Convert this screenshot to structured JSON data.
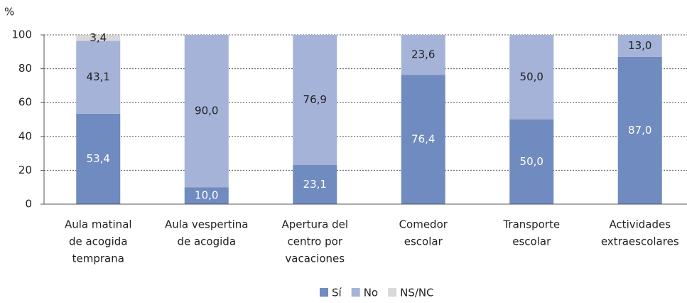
{
  "chart_data": {
    "type": "stacked_bar",
    "y_label": "%",
    "categories": [
      [
        "Aula matinal",
        "de acogida",
        "temprana"
      ],
      [
        "Aula vespertina",
        "de acogida"
      ],
      [
        "Apertura del",
        "centro por",
        "vacaciones"
      ],
      [
        "Comedor",
        "escolar"
      ],
      [
        "Transporte",
        "escolar"
      ],
      [
        "Actividades",
        "extraescolares"
      ]
    ],
    "series": [
      {
        "name": "Sí",
        "color": "#6f8bbf",
        "label_color": "#ffffff",
        "values": [
          53.4,
          10.0,
          23.1,
          76.4,
          50.0,
          87.0
        ],
        "value_labels": [
          "53,4",
          "10,0",
          "23,1",
          "76,4",
          "50,0",
          "87,0"
        ]
      },
      {
        "name": "No",
        "color": "#a5b3d8",
        "label_color": "#222222",
        "values": [
          43.1,
          90.0,
          76.9,
          23.6,
          50.0,
          13.0
        ],
        "value_labels": [
          "43,1",
          "90,0",
          "76,9",
          "23,6",
          "50,0",
          "13,0"
        ]
      },
      {
        "name": "NS/NC",
        "color": "#d9d9d9",
        "label_color": "#222222",
        "values": [
          3.4,
          null,
          null,
          null,
          null,
          null
        ],
        "value_labels": [
          "3,4",
          null,
          null,
          null,
          null,
          null
        ]
      }
    ],
    "ylim": [
      0,
      100
    ],
    "yticks": [
      0,
      20,
      40,
      60,
      80,
      100
    ],
    "grid": true,
    "legend": "bottom"
  }
}
